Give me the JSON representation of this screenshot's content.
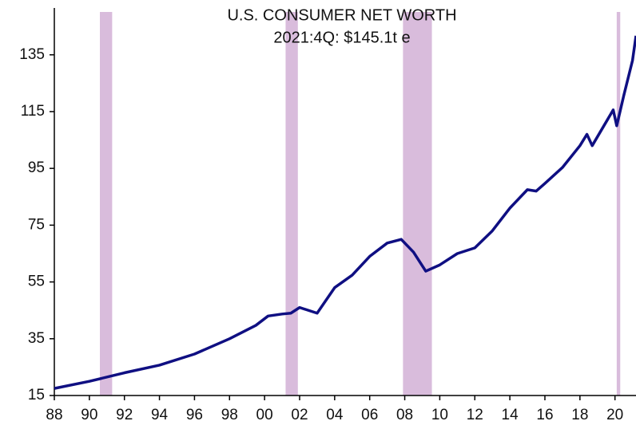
{
  "chart_data": {
    "type": "line",
    "title": "U.S. CONSUMER NET WORTH",
    "subtitle": "2021:4Q: $145.1t e",
    "x": [
      1988,
      1990,
      1992,
      1994,
      1996,
      1998,
      1999.5,
      2000.2,
      2001,
      2001.5,
      2002,
      2003,
      2004,
      2005,
      2006,
      2007,
      2007.8,
      2008.5,
      2009.2,
      2010,
      2011,
      2012,
      2013,
      2014,
      2015,
      2015.5,
      2016,
      2017,
      2018,
      2018.4,
      2018.7,
      2019.9,
      2020.1,
      2020.5,
      2021,
      2021.2
    ],
    "series": [
      {
        "name": "U.S. Consumer Net Worth",
        "color": "#0f0f82",
        "values": [
          17.5,
          20,
          23,
          25.7,
          29.6,
          35,
          39.7,
          43,
          43.7,
          44,
          46,
          44,
          53,
          57.4,
          64,
          68.7,
          70,
          65.5,
          58.8,
          61,
          65,
          67,
          73,
          81,
          87.5,
          87,
          89.7,
          95.3,
          103,
          107,
          103,
          115.6,
          110,
          120.6,
          133,
          141.7
        ]
      }
    ],
    "recessions": {
      "color": "#d9bcdc",
      "spans": [
        [
          1990.6,
          1991.3
        ],
        [
          2001.2,
          2001.9
        ],
        [
          2007.9,
          2009.55
        ],
        [
          2020.1,
          2020.3
        ]
      ]
    },
    "xlim": [
      1988,
      2021.2
    ],
    "xticks": [
      {
        "value": 1988,
        "label": "88"
      },
      {
        "value": 1990,
        "label": "90"
      },
      {
        "value": 1992,
        "label": "92"
      },
      {
        "value": 1994,
        "label": "94"
      },
      {
        "value": 1996,
        "label": "96"
      },
      {
        "value": 1998,
        "label": "98"
      },
      {
        "value": 2000,
        "label": "00"
      },
      {
        "value": 2002,
        "label": "02"
      },
      {
        "value": 2004,
        "label": "04"
      },
      {
        "value": 2006,
        "label": "06"
      },
      {
        "value": 2008,
        "label": "08"
      },
      {
        "value": 2010,
        "label": "10"
      },
      {
        "value": 2012,
        "label": "12"
      },
      {
        "value": 2014,
        "label": "14"
      },
      {
        "value": 2016,
        "label": "16"
      },
      {
        "value": 2018,
        "label": "18"
      },
      {
        "value": 2020,
        "label": "20"
      }
    ],
    "ylim": [
      15,
      151.5
    ],
    "yticks": [
      15,
      35,
      55,
      75,
      95,
      115,
      135
    ]
  }
}
